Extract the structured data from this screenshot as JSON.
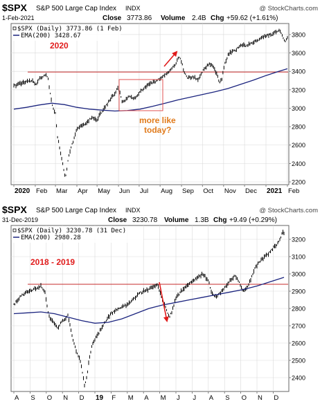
{
  "colors": {
    "price": "#000000",
    "ema": "#1a237e",
    "ref_line": "#c62828",
    "annotation_red": "#e01b1b",
    "annotation_orange": "#e07a1b",
    "border": "#666666",
    "grid": "#d9d9d9",
    "panel_bg": "#ffffff"
  },
  "chart_data": [
    {
      "type": "line",
      "symbol": "$SPX",
      "name": "S&P 500 Large Cap Index",
      "exchange": "INDX",
      "watermark": "@ StockCharts.com",
      "date": "1-Feb-2021",
      "close_label": "Close",
      "close": "3773.86",
      "volume_label": "Volume",
      "volume": "2.4B",
      "chg_label": "Chg",
      "chg": "+59.62 (+1.61%)",
      "legend": [
        {
          "text": "$SPX (Daily) 3773.86 (1 Feb)",
          "color": "#000000"
        },
        {
          "text": "EMA(200) 3428.67",
          "color": "#1a237e"
        }
      ],
      "annotation_title": "2020",
      "annotation_note": [
        "more like",
        "today?"
      ],
      "ylim": [
        2170,
        3920
      ],
      "yticks": [
        2200,
        2400,
        2600,
        2800,
        3000,
        3200,
        3400,
        3600,
        3800
      ],
      "ref_level": 3393,
      "xticks": [
        {
          "label": "2020",
          "t": 0.0,
          "bold": true
        },
        {
          "label": "Feb",
          "t": 0.085
        },
        {
          "label": "Mar",
          "t": 0.165
        },
        {
          "label": "Apr",
          "t": 0.25
        },
        {
          "label": "May",
          "t": 0.33
        },
        {
          "label": "Jun",
          "t": 0.415
        },
        {
          "label": "Jul",
          "t": 0.497
        },
        {
          "label": "Aug",
          "t": 0.58
        },
        {
          "label": "Sep",
          "t": 0.665
        },
        {
          "label": "Oct",
          "t": 0.748
        },
        {
          "label": "Nov",
          "t": 0.832
        },
        {
          "label": "Dec",
          "t": 0.915
        },
        {
          "label": "2021",
          "t": 1.0,
          "bold": true
        },
        {
          "label": "Feb",
          "t": 1.085
        }
      ],
      "series": [
        {
          "name": "$SPX (Daily)",
          "points": [
            [
              0.0,
              3240
            ],
            [
              0.02,
              3260
            ],
            [
              0.04,
              3285
            ],
            [
              0.06,
              3295
            ],
            [
              0.075,
              3300
            ],
            [
              0.09,
              3250
            ],
            [
              0.1,
              3320
            ],
            [
              0.115,
              3340
            ],
            [
              0.125,
              3370
            ],
            [
              0.135,
              3330
            ],
            [
              0.145,
              3150
            ],
            [
              0.155,
              3000
            ],
            [
              0.165,
              2950
            ],
            [
              0.172,
              2700
            ],
            [
              0.18,
              2600
            ],
            [
              0.19,
              2450
            ],
            [
              0.2,
              2300
            ],
            [
              0.205,
              2240
            ],
            [
              0.213,
              2400
            ],
            [
              0.22,
              2500
            ],
            [
              0.23,
              2600
            ],
            [
              0.24,
              2680
            ],
            [
              0.25,
              2780
            ],
            [
              0.26,
              2790
            ],
            [
              0.275,
              2820
            ],
            [
              0.29,
              2850
            ],
            [
              0.31,
              2900
            ],
            [
              0.33,
              2870
            ],
            [
              0.34,
              2930
            ],
            [
              0.355,
              2990
            ],
            [
              0.37,
              3040
            ],
            [
              0.385,
              3110
            ],
            [
              0.4,
              3150
            ],
            [
              0.41,
              3220
            ],
            [
              0.42,
              3190
            ],
            [
              0.43,
              3060
            ],
            [
              0.445,
              3100
            ],
            [
              0.46,
              3130
            ],
            [
              0.48,
              3110
            ],
            [
              0.5,
              3170
            ],
            [
              0.52,
              3230
            ],
            [
              0.54,
              3270
            ],
            [
              0.56,
              3290
            ],
            [
              0.58,
              3320
            ],
            [
              0.6,
              3360
            ],
            [
              0.615,
              3390
            ],
            [
              0.63,
              3440
            ],
            [
              0.645,
              3500
            ],
            [
              0.655,
              3560
            ],
            [
              0.665,
              3500
            ],
            [
              0.675,
              3400
            ],
            [
              0.685,
              3340
            ],
            [
              0.7,
              3330
            ],
            [
              0.715,
              3340
            ],
            [
              0.73,
              3300
            ],
            [
              0.745,
              3390
            ],
            [
              0.76,
              3440
            ],
            [
              0.775,
              3480
            ],
            [
              0.79,
              3460
            ],
            [
              0.8,
              3400
            ],
            [
              0.81,
              3330
            ],
            [
              0.815,
              3280
            ],
            [
              0.825,
              3320
            ],
            [
              0.835,
              3470
            ],
            [
              0.85,
              3580
            ],
            [
              0.86,
              3610
            ],
            [
              0.875,
              3620
            ],
            [
              0.89,
              3660
            ],
            [
              0.905,
              3690
            ],
            [
              0.92,
              3680
            ],
            [
              0.935,
              3700
            ],
            [
              0.95,
              3720
            ],
            [
              0.965,
              3730
            ],
            [
              0.98,
              3760
            ],
            [
              1.0,
              3790
            ],
            [
              1.02,
              3800
            ],
            [
              1.04,
              3830
            ],
            [
              1.055,
              3850
            ],
            [
              1.065,
              3790
            ],
            [
              1.075,
              3715
            ],
            [
              1.085,
              3774
            ]
          ]
        },
        {
          "name": "EMA(200)",
          "points": [
            [
              0.0,
              2990
            ],
            [
              0.05,
              3010
            ],
            [
              0.1,
              3035
            ],
            [
              0.15,
              3055
            ],
            [
              0.2,
              3040
            ],
            [
              0.25,
              3010
            ],
            [
              0.3,
              2990
            ],
            [
              0.35,
              2980
            ],
            [
              0.4,
              2970
            ],
            [
              0.45,
              2975
            ],
            [
              0.5,
              2990
            ],
            [
              0.55,
              3020
            ],
            [
              0.6,
              3055
            ],
            [
              0.65,
              3090
            ],
            [
              0.7,
              3120
            ],
            [
              0.75,
              3150
            ],
            [
              0.8,
              3180
            ],
            [
              0.85,
              3215
            ],
            [
              0.9,
              3260
            ],
            [
              0.95,
              3305
            ],
            [
              1.0,
              3355
            ],
            [
              1.05,
              3400
            ],
            [
              1.085,
              3429
            ]
          ]
        }
      ]
    },
    {
      "type": "line",
      "symbol": "$SPX",
      "name": "S&P 500 Large Cap Index",
      "exchange": "INDX",
      "watermark": "@ StockCharts.com",
      "date": "31-Dec-2019",
      "close_label": "Close",
      "close": "3230.78",
      "volume_label": "Volume",
      "volume": "1.3B",
      "chg_label": "Chg",
      "chg": "+9.49 (+0.29%)",
      "legend": [
        {
          "text": "$SPX (Daily) 3230.78 (31 Dec)",
          "color": "#000000"
        },
        {
          "text": "EMA(200) 2980.28",
          "color": "#1a237e"
        }
      ],
      "annotation_title": "2018 - 2019",
      "ylim": [
        2320,
        3280
      ],
      "yticks": [
        2400,
        2500,
        2600,
        2700,
        2800,
        2900,
        3000,
        3100,
        3200
      ],
      "ref_level": 2940,
      "xticks": [
        {
          "label": "A",
          "t": 0.0
        },
        {
          "label": "S",
          "t": 0.06
        },
        {
          "label": "O",
          "t": 0.12
        },
        {
          "label": "N",
          "t": 0.18
        },
        {
          "label": "D",
          "t": 0.24
        },
        {
          "label": "19",
          "t": 0.3,
          "bold": true
        },
        {
          "label": "F",
          "t": 0.36
        },
        {
          "label": "M",
          "t": 0.42
        },
        {
          "label": "A",
          "t": 0.48
        },
        {
          "label": "M",
          "t": 0.54
        },
        {
          "label": "J",
          "t": 0.6
        },
        {
          "label": "J",
          "t": 0.66
        },
        {
          "label": "A",
          "t": 0.72
        },
        {
          "label": "S",
          "t": 0.78
        },
        {
          "label": "O",
          "t": 0.84
        },
        {
          "label": "N",
          "t": 0.9
        },
        {
          "label": "D",
          "t": 0.96
        }
      ],
      "series": [
        {
          "name": "$SPX (Daily)",
          "points": [
            [
              0.0,
              2820
            ],
            [
              0.02,
              2860
            ],
            [
              0.04,
              2890
            ],
            [
              0.06,
              2905
            ],
            [
              0.08,
              2915
            ],
            [
              0.1,
              2930
            ],
            [
              0.115,
              2900
            ],
            [
              0.125,
              2790
            ],
            [
              0.135,
              2740
            ],
            [
              0.145,
              2720
            ],
            [
              0.155,
              2700
            ],
            [
              0.165,
              2690
            ],
            [
              0.175,
              2720
            ],
            [
              0.19,
              2740
            ],
            [
              0.2,
              2760
            ],
            [
              0.21,
              2690
            ],
            [
              0.22,
              2610
            ],
            [
              0.23,
              2560
            ],
            [
              0.245,
              2500
            ],
            [
              0.255,
              2420
            ],
            [
              0.262,
              2350
            ],
            [
              0.27,
              2400
            ],
            [
              0.28,
              2520
            ],
            [
              0.29,
              2590
            ],
            [
              0.3,
              2620
            ],
            [
              0.315,
              2660
            ],
            [
              0.33,
              2700
            ],
            [
              0.345,
              2740
            ],
            [
              0.36,
              2770
            ],
            [
              0.38,
              2790
            ],
            [
              0.4,
              2810
            ],
            [
              0.42,
              2820
            ],
            [
              0.44,
              2850
            ],
            [
              0.46,
              2880
            ],
            [
              0.48,
              2900
            ],
            [
              0.5,
              2910
            ],
            [
              0.52,
              2930
            ],
            [
              0.53,
              2945
            ],
            [
              0.54,
              2900
            ],
            [
              0.55,
              2850
            ],
            [
              0.565,
              2790
            ],
            [
              0.575,
              2750
            ],
            [
              0.585,
              2780
            ],
            [
              0.6,
              2860
            ],
            [
              0.62,
              2900
            ],
            [
              0.64,
              2930
            ],
            [
              0.66,
              2960
            ],
            [
              0.68,
              2980
            ],
            [
              0.7,
              3000
            ],
            [
              0.72,
              2960
            ],
            [
              0.735,
              2880
            ],
            [
              0.75,
              2870
            ],
            [
              0.77,
              2900
            ],
            [
              0.79,
              2940
            ],
            [
              0.8,
              2960
            ],
            [
              0.82,
              2990
            ],
            [
              0.835,
              2950
            ],
            [
              0.85,
              2900
            ],
            [
              0.865,
              2920
            ],
            [
              0.88,
              2980
            ],
            [
              0.895,
              3040
            ],
            [
              0.91,
              3070
            ],
            [
              0.93,
              3100
            ],
            [
              0.945,
              3120
            ],
            [
              0.96,
              3150
            ],
            [
              0.975,
              3170
            ],
            [
              0.985,
              3200
            ],
            [
              0.995,
              3240
            ],
            [
              1.0,
              3231
            ]
          ]
        },
        {
          "name": "EMA(200)",
          "points": [
            [
              0.0,
              2770
            ],
            [
              0.05,
              2775
            ],
            [
              0.1,
              2780
            ],
            [
              0.15,
              2770
            ],
            [
              0.2,
              2750
            ],
            [
              0.25,
              2730
            ],
            [
              0.3,
              2715
            ],
            [
              0.35,
              2720
            ],
            [
              0.4,
              2740
            ],
            [
              0.45,
              2770
            ],
            [
              0.5,
              2800
            ],
            [
              0.55,
              2820
            ],
            [
              0.6,
              2835
            ],
            [
              0.65,
              2850
            ],
            [
              0.7,
              2865
            ],
            [
              0.75,
              2880
            ],
            [
              0.8,
              2895
            ],
            [
              0.85,
              2910
            ],
            [
              0.9,
              2930
            ],
            [
              0.95,
              2955
            ],
            [
              1.0,
              2980
            ]
          ]
        }
      ]
    }
  ]
}
